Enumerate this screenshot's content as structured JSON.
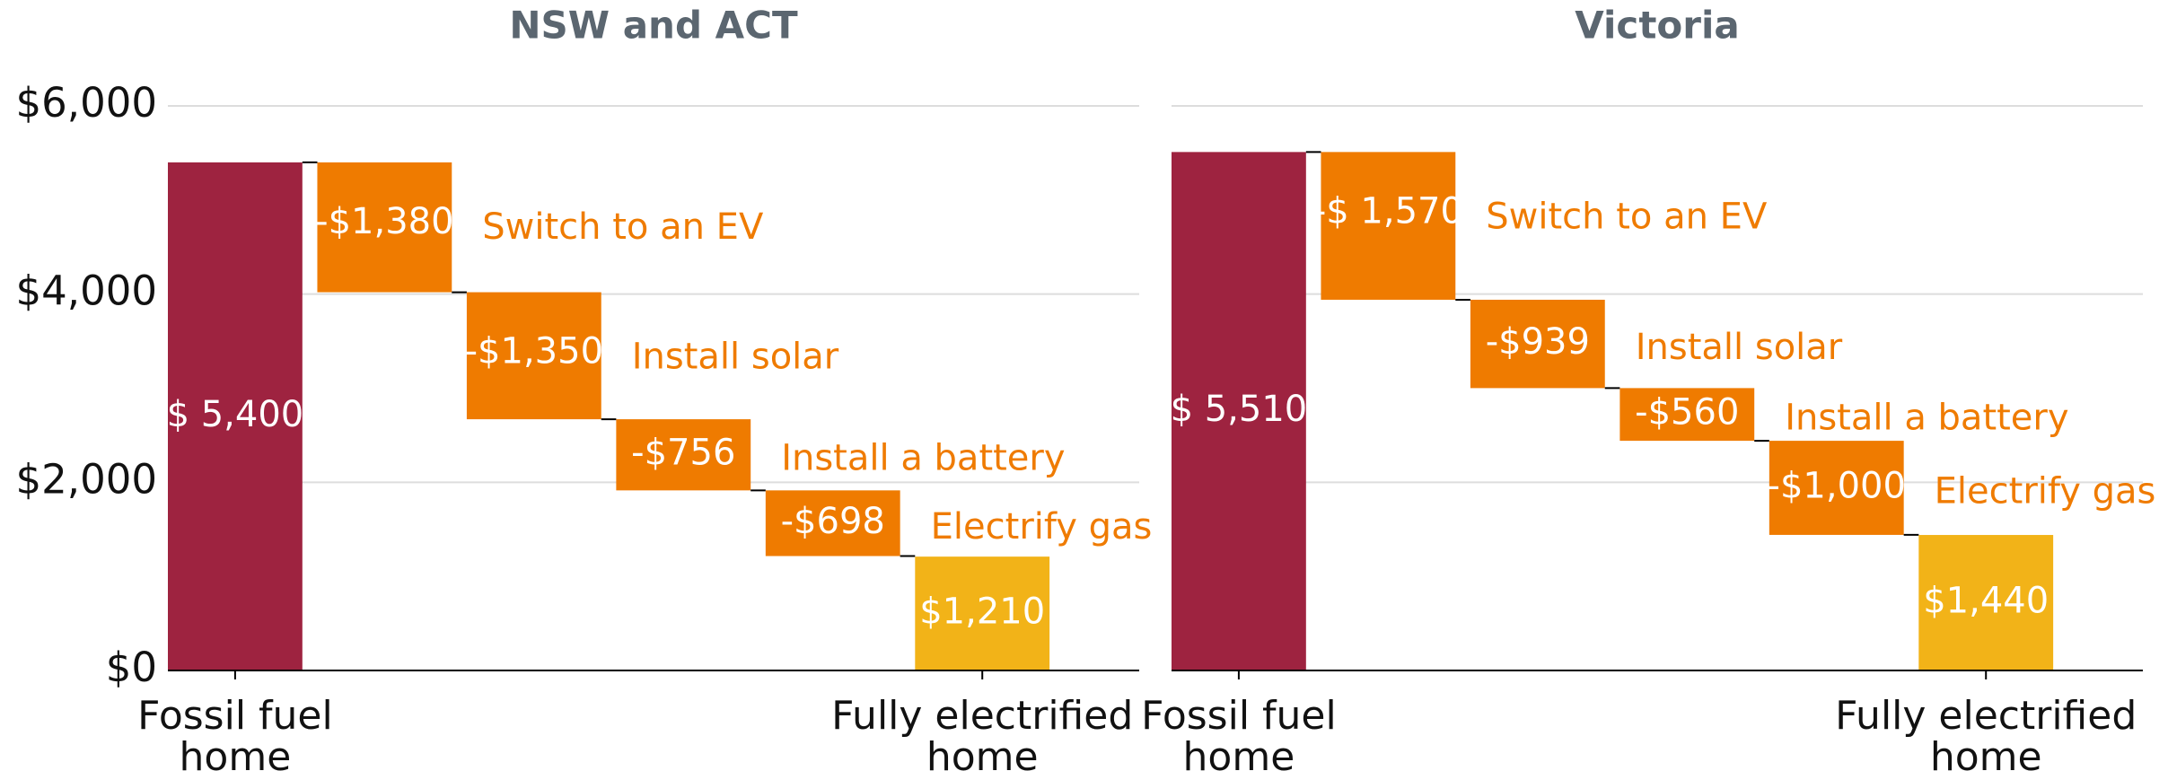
{
  "chart_data": [
    {
      "type": "waterfall",
      "title": "NSW and ACT",
      "categories": [
        "Fossil fuel home",
        "Switch to an EV",
        "Install solar",
        "Install a battery",
        "Electrify gas",
        "Fully electrified home"
      ],
      "values": [
        5400,
        -1380,
        -1350,
        -756,
        -698,
        1210
      ],
      "value_labels": [
        "$ 5,400",
        "-$1,380",
        "-$1,350",
        "-$756",
        "-$698",
        "$1,210"
      ],
      "colors": [
        "#9e2340",
        "#ef7b00",
        "#ef7b00",
        "#ef7b00",
        "#ef7b00",
        "#f2b318"
      ],
      "ylim": [
        0,
        6000
      ],
      "yticks": [
        {
          "value": 0,
          "label": "$0"
        },
        {
          "value": 2000,
          "label": "$2,000"
        },
        {
          "value": 4000,
          "label": "$4,000"
        },
        {
          "value": 6000,
          "label": "$6,000"
        }
      ],
      "grid": true
    },
    {
      "type": "waterfall",
      "title": "Victoria",
      "categories": [
        "Fossil fuel home",
        "Switch to an EV",
        "Install solar",
        "Install a battery",
        "Electrify gas",
        "Fully electrified home"
      ],
      "values": [
        5510,
        -1570,
        -939,
        -560,
        -1000,
        1440
      ],
      "value_labels": [
        "$ 5,510",
        "-$ 1,570",
        "-$939",
        "-$560",
        "-$1,000",
        "$1,440"
      ],
      "colors": [
        "#9e2340",
        "#ef7b00",
        "#ef7b00",
        "#ef7b00",
        "#ef7b00",
        "#f2b318"
      ],
      "ylim": [
        0,
        6000
      ],
      "yticks": [
        0,
        2000,
        4000,
        6000
      ],
      "grid": true
    }
  ]
}
